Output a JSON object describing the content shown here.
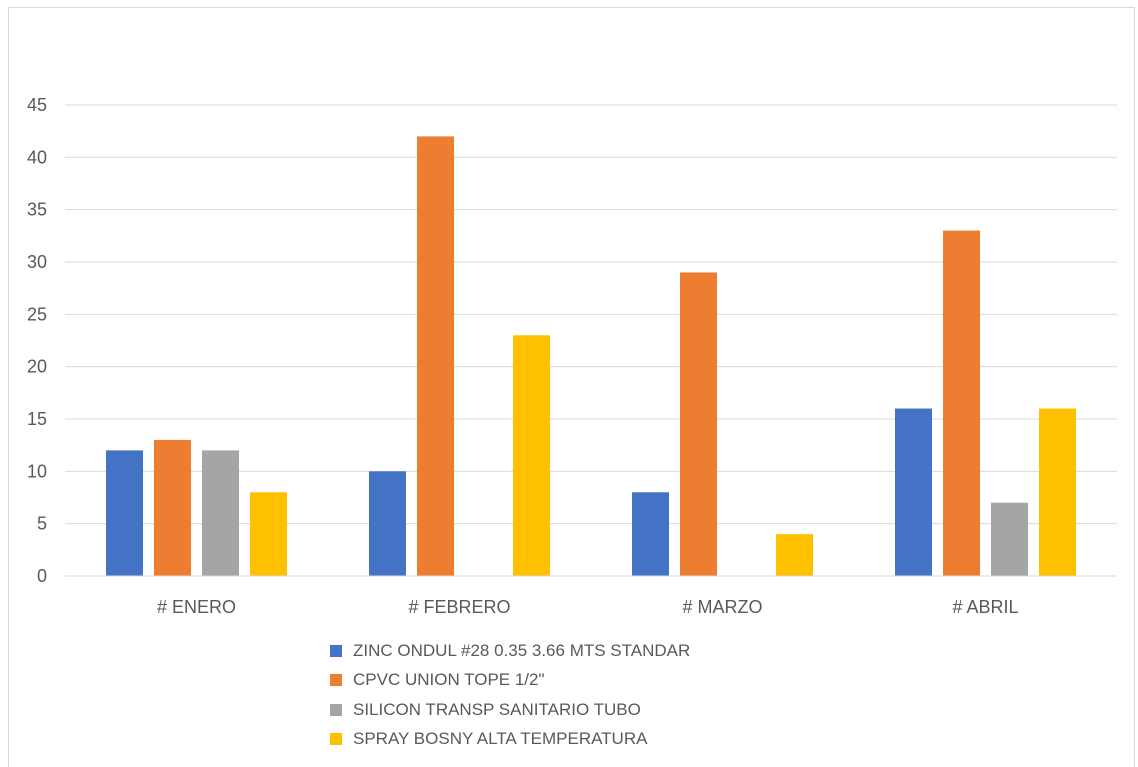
{
  "chart_data": {
    "type": "bar",
    "categories": [
      "# ENERO",
      "# FEBRERO",
      "# MARZO",
      "# ABRIL"
    ],
    "series": [
      {
        "name": "ZINC ONDUL #28 0.35 3.66 MTS STANDAR",
        "color": "#4472C4",
        "values": [
          12,
          10,
          8,
          16
        ]
      },
      {
        "name": "CPVC UNION TOPE 1/2\"",
        "color": "#ED7D31",
        "values": [
          13,
          42,
          29,
          33
        ]
      },
      {
        "name": "SILICON TRANSP SANITARIO TUBO",
        "color": "#A5A5A5",
        "values": [
          12,
          0,
          0,
          7
        ]
      },
      {
        "name": "SPRAY BOSNY ALTA TEMPERATURA",
        "color": "#FFC000",
        "values": [
          8,
          23,
          4,
          16
        ]
      }
    ],
    "y_ticks": [
      "0",
      "5",
      "10",
      "15",
      "20",
      "25",
      "30",
      "35",
      "40",
      "45"
    ],
    "ylim": [
      0,
      45
    ],
    "title": "",
    "xlabel": "",
    "ylabel": "",
    "grid": true,
    "legend_position": "bottom"
  }
}
